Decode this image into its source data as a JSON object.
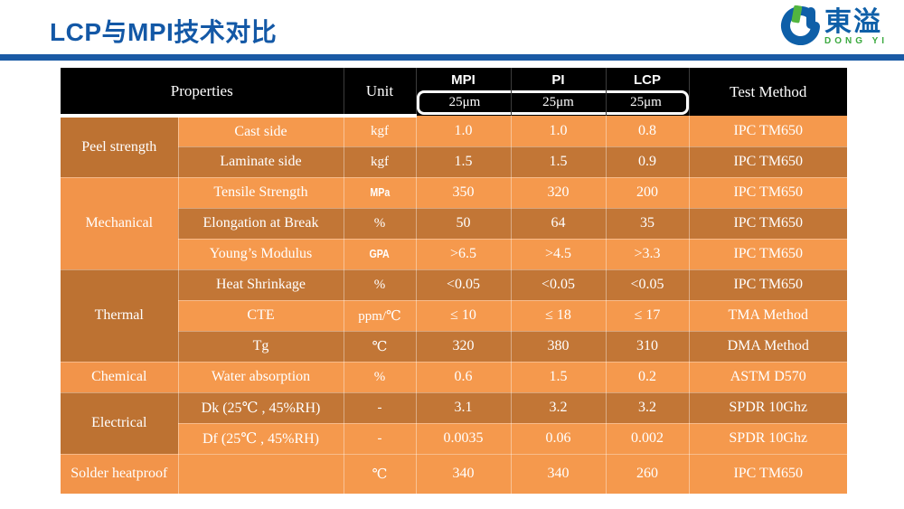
{
  "page": {
    "title": "LCP与MPI技术对比"
  },
  "logo": {
    "name_cn": "東溢",
    "name_en": "DONG YI"
  },
  "colors": {
    "title_blue": "#1358a6",
    "divider_blue": "#1a5aa5",
    "header_black": "#000000",
    "row_light_orange": "#f5994d",
    "row_dark_orange": "#c27636",
    "logo_blue": "#0e5fa8",
    "logo_green": "#52b53f",
    "text_white": "#ffffff"
  },
  "table": {
    "headers": {
      "properties": "Properties",
      "unit": "Unit",
      "test_method": "Test Method",
      "materials": [
        {
          "name": "MPI",
          "thickness": "25μm"
        },
        {
          "name": "PI",
          "thickness": "25μm"
        },
        {
          "name": "LCP",
          "thickness": "25μm"
        }
      ]
    },
    "groups": [
      {
        "category": "Peel strength",
        "shade": "dark",
        "rows": [
          {
            "property": "Cast side",
            "unit": "kgf",
            "mpi": "1.0",
            "pi": "1.0",
            "lcp": "0.8",
            "test": "IPC TM650",
            "shade": "light"
          },
          {
            "property": "Laminate side",
            "unit": "kgf",
            "mpi": "1.5",
            "pi": "1.5",
            "lcp": "0.9",
            "test": "IPC TM650",
            "shade": "dark"
          }
        ]
      },
      {
        "category": "Mechanical",
        "shade": "light",
        "rows": [
          {
            "property": "Tensile Strength",
            "unit": "MPa",
            "unit_font": "narrow",
            "mpi": "350",
            "pi": "320",
            "lcp": "200",
            "test": "IPC TM650",
            "shade": "light"
          },
          {
            "property": "Elongation at Break",
            "unit": "%",
            "mpi": "50",
            "pi": "64",
            "lcp": "35",
            "test": "IPC TM650",
            "shade": "dark"
          },
          {
            "property": "Young’s Modulus",
            "unit": "GPA",
            "unit_font": "narrow",
            "mpi": ">6.5",
            "pi": ">4.5",
            "lcp": ">3.3",
            "test": "IPC TM650",
            "shade": "light"
          }
        ]
      },
      {
        "category": "Thermal",
        "shade": "dark",
        "rows": [
          {
            "property": "Heat Shrinkage",
            "unit": "%",
            "mpi": "<0.05",
            "pi": "<0.05",
            "lcp": "<0.05",
            "test": "IPC TM650",
            "shade": "dark"
          },
          {
            "property": "CTE",
            "unit": "ppm/℃",
            "mpi": "≤ 10",
            "pi": "≤ 18",
            "lcp": "≤ 17",
            "test": "TMA Method",
            "shade": "light"
          },
          {
            "property": "Tg",
            "unit": "℃",
            "mpi": "320",
            "pi": "380",
            "lcp": "310",
            "test": "DMA Method",
            "shade": "dark"
          }
        ]
      },
      {
        "category": "Chemical",
        "shade": "light",
        "rows": [
          {
            "property": "Water absorption",
            "unit": "%",
            "mpi": "0.6",
            "pi": "1.5",
            "lcp": "0.2",
            "test": "ASTM D570",
            "shade": "light"
          }
        ]
      },
      {
        "category": "Electrical",
        "shade": "dark",
        "rows": [
          {
            "property": "Dk (25℃ , 45%RH)",
            "unit": "-",
            "mpi": "3.1",
            "pi": "3.2",
            "lcp": "3.2",
            "test": "SPDR 10Ghz",
            "shade": "dark"
          },
          {
            "property": "Df (25℃ , 45%RH)",
            "unit": "-",
            "mpi": "0.0035",
            "pi": "0.06",
            "lcp": "0.002",
            "test": "SPDR 10Ghz",
            "shade": "light"
          }
        ]
      },
      {
        "category": "Solder heatproof",
        "shade": "light",
        "rows": [
          {
            "property": "",
            "unit": "℃",
            "mpi": "340",
            "pi": "340",
            "lcp": "260",
            "test": "IPC TM650",
            "shade": "light",
            "tall": true
          }
        ]
      }
    ]
  }
}
